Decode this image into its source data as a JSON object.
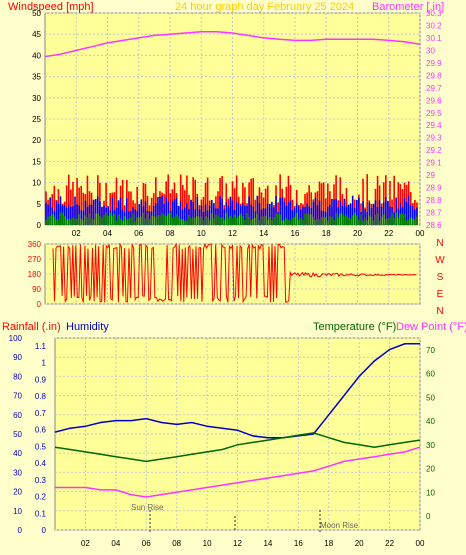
{
  "header": {
    "left_label": "Windspeed [mph]",
    "center_label": "24 hour graph day   February 25 2024",
    "right_label": "Barometer [.in]"
  },
  "colors": {
    "background": "#ffffcc",
    "plot_bg": "#ffff99",
    "grid": "#c8c8c8",
    "wind_avg": "#0000ff",
    "wind_gust": "#ff0000",
    "wind_low": "#008000",
    "barometer": "#ff33ff",
    "direction": "#ff0000",
    "humidity": "#0000cc",
    "temperature": "#006600",
    "dewpoint": "#ff33ff",
    "rain_axis": "#ff0000",
    "humidity_axis": "#0000cc",
    "temp_axis": "#006600"
  },
  "x_ticks": [
    "02",
    "04",
    "06",
    "08",
    "10",
    "12",
    "14",
    "16",
    "18",
    "20",
    "22",
    "00"
  ],
  "wind_axis": {
    "ticks": [
      "0",
      "5",
      "10",
      "15",
      "20",
      "25",
      "30",
      "35",
      "40",
      "45",
      "50"
    ],
    "range": [
      0,
      50
    ]
  },
  "baro_axis": {
    "ticks": [
      "28.6",
      "28.7",
      "28.8",
      "28.9",
      "29",
      "29.1",
      "29.2",
      "29.3",
      "29.4",
      "29.5",
      "29.6",
      "29.7",
      "29.8",
      "29.9",
      "30",
      "30.1",
      "30.2",
      "30.3"
    ],
    "range": [
      28.6,
      30.3
    ]
  },
  "dir_axis": {
    "ticks": [
      "0",
      "90",
      "180",
      "270",
      "360"
    ],
    "letters": [
      "N",
      "W",
      "S",
      "E",
      "N"
    ]
  },
  "bottom_panel": {
    "rain_label": "Rainfall (.in)",
    "humidity_label": "Humidity",
    "temp_label": "Temperature (°F)",
    "dew_label": "Dew Point (°F)",
    "humidity_ticks": [
      "0",
      "10",
      "20",
      "30",
      "40",
      "50",
      "60",
      "70",
      "80",
      "90",
      "100"
    ],
    "rain_ticks": [
      "0",
      "0.1",
      "0.2",
      "0.3",
      "0.4",
      "0.5",
      "0.6",
      "0.7",
      "0.8",
      "0.9",
      "1",
      "1.1"
    ],
    "temp_ticks": [
      "0",
      "10",
      "20",
      "30",
      "40",
      "50",
      "60",
      "70"
    ],
    "sun_rise": "Sun Rise",
    "moon_rise": "Moon Rise"
  },
  "chart_data": [
    {
      "type": "line",
      "title": "24 hour graph day   February 25 2024",
      "x_hours": [
        0,
        1,
        2,
        3,
        4,
        5,
        6,
        7,
        8,
        9,
        10,
        11,
        12,
        13,
        14,
        15,
        16,
        17,
        18,
        19,
        20,
        21,
        22,
        23,
        24
      ],
      "series": [
        {
          "name": "Windspeed [mph]",
          "avg_level": 5,
          "gust_level": 8,
          "low_level": 1
        },
        {
          "name": "Barometer [.in]",
          "values": [
            29.95,
            29.97,
            30.0,
            30.03,
            30.06,
            30.08,
            30.1,
            30.12,
            30.13,
            30.14,
            30.15,
            30.15,
            30.14,
            30.12,
            30.1,
            30.09,
            30.08,
            30.08,
            30.09,
            30.09,
            30.09,
            30.09,
            30.08,
            30.07,
            30.05
          ]
        }
      ],
      "ylim_left": [
        0,
        50
      ],
      "ylim_right": [
        28.6,
        30.3
      ]
    },
    {
      "type": "line",
      "title": "Wind direction",
      "series": [
        {
          "name": "Direction",
          "note": "variable 0-360 until ~16h, then steady near 180-190"
        }
      ],
      "ylim": [
        0,
        360
      ]
    },
    {
      "type": "line",
      "series": [
        {
          "name": "Humidity",
          "values": [
            51,
            53,
            54,
            56,
            57,
            57,
            58,
            56,
            55,
            56,
            54,
            53,
            52,
            49,
            48,
            48,
            49,
            50,
            60,
            70,
            80,
            88,
            94,
            97,
            97
          ]
        },
        {
          "name": "Temperature (°F)",
          "values": [
            29,
            28,
            27,
            26,
            25,
            24,
            23,
            24,
            25,
            26,
            27,
            28,
            30,
            31,
            32,
            33,
            34,
            35,
            33,
            31,
            30,
            29,
            30,
            31,
            32
          ]
        },
        {
          "name": "Dew Point (°F)",
          "values": [
            12,
            12,
            12,
            11,
            11,
            9,
            8,
            9,
            10,
            11,
            12,
            13,
            14,
            15,
            16,
            17,
            18,
            19,
            21,
            23,
            24,
            25,
            26,
            27,
            29
          ]
        }
      ],
      "ylim_left": [
        0,
        100
      ],
      "ylim_right": [
        0,
        75
      ]
    }
  ]
}
